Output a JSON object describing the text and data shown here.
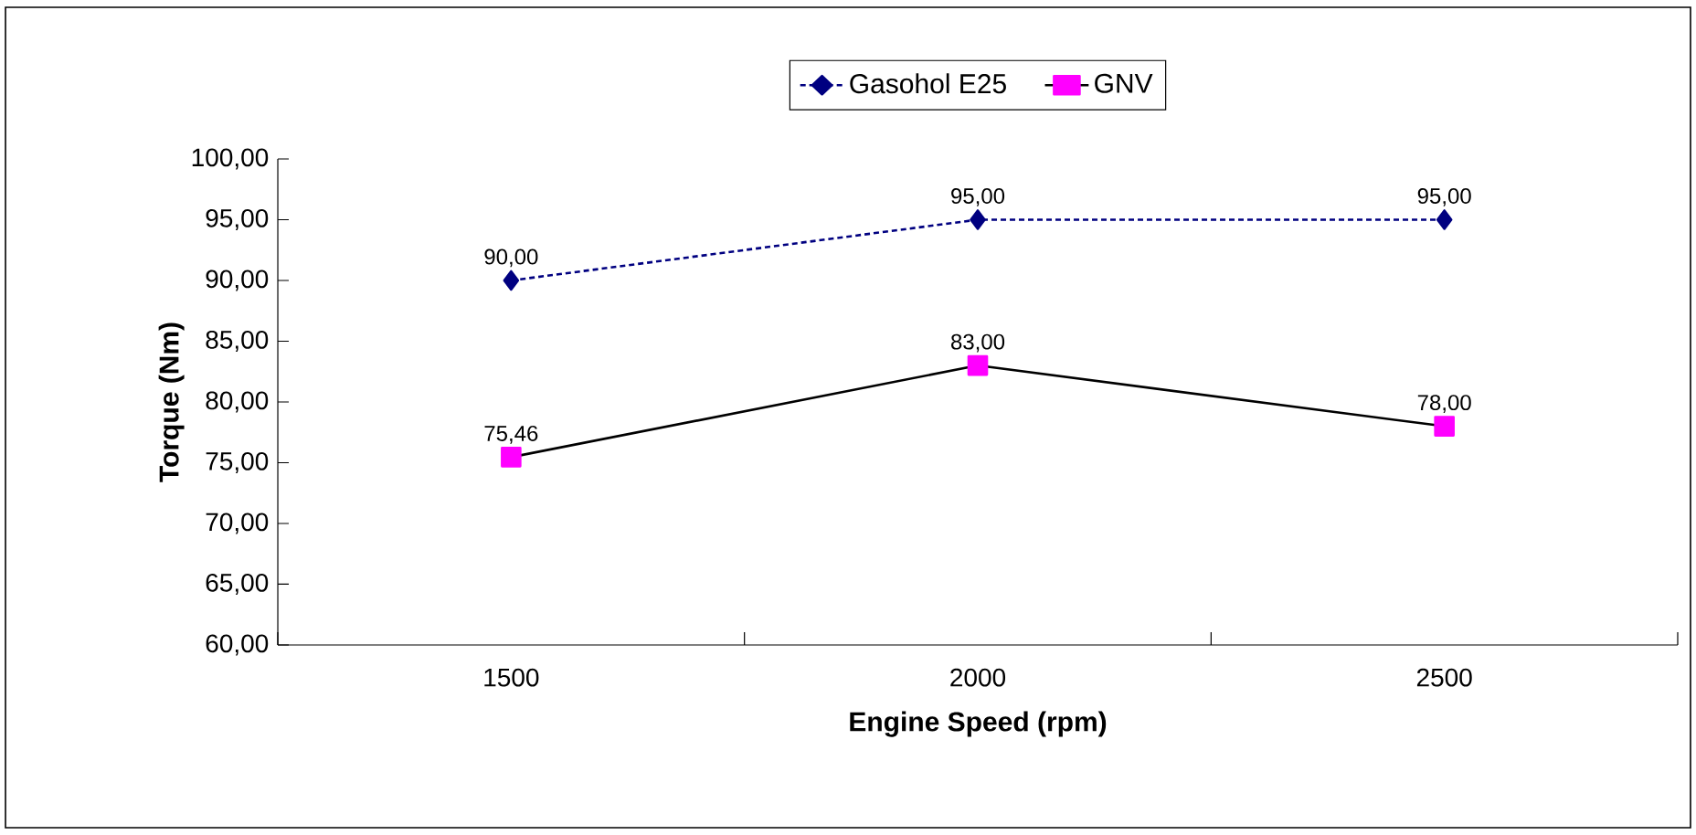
{
  "chart_data": {
    "type": "line",
    "xlabel": "Engine Speed (rpm)",
    "ylabel": "Torque (Nm)",
    "categories": [
      "1500",
      "2000",
      "2500"
    ],
    "series": [
      {
        "name": "Gasohol E25",
        "color": "#000080",
        "values": [
          90,
          95,
          95
        ],
        "value_labels": [
          "90,00",
          "95,00",
          "95,00"
        ],
        "marker": "diamond",
        "line_style": "dashed"
      },
      {
        "name": "GNV",
        "color": "#ff00ff",
        "values": [
          75.46,
          83,
          78
        ],
        "value_labels": [
          "75,46",
          "83,00",
          "78,00"
        ],
        "marker": "square",
        "line_style": "solid"
      }
    ],
    "ylim": [
      60,
      100
    ],
    "yticks": [
      {
        "value": 60,
        "label": "60,00"
      },
      {
        "value": 65,
        "label": "65,00"
      },
      {
        "value": 70,
        "label": "70,00"
      },
      {
        "value": 75,
        "label": "75,00"
      },
      {
        "value": 80,
        "label": "80,00"
      },
      {
        "value": 85,
        "label": "85,00"
      },
      {
        "value": 90,
        "label": "90,00"
      },
      {
        "value": 95,
        "label": "95,00"
      },
      {
        "value": 100,
        "label": "100,00"
      }
    ],
    "grid": false,
    "legend": "top"
  }
}
